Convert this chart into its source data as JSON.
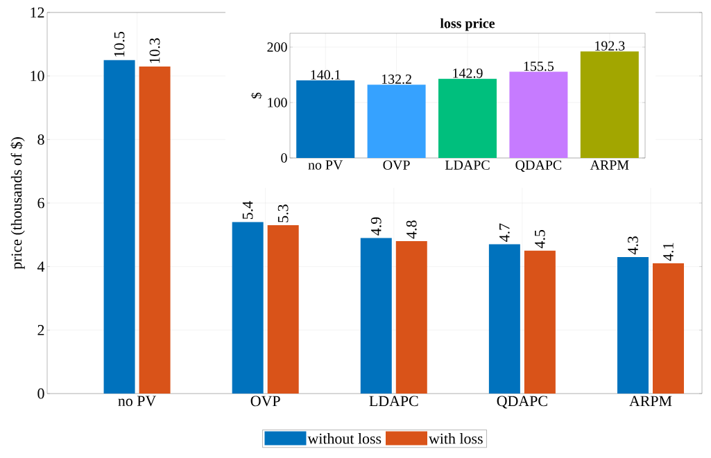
{
  "chart_data": [
    {
      "type": "bar",
      "ylabel": "price (thousands of $)",
      "categories": [
        "no PV",
        "OVP",
        "LDAPC",
        "QDAPC",
        "ARPM"
      ],
      "series": [
        {
          "name": "without loss",
          "color": "#0072bd",
          "values": [
            10.5,
            5.4,
            4.9,
            4.7,
            4.3
          ]
        },
        {
          "name": "with loss",
          "color": "#d95319",
          "values": [
            10.3,
            5.3,
            4.8,
            4.5,
            4.1
          ]
        }
      ],
      "ylim": [
        0,
        12
      ],
      "yticks": [
        0,
        2,
        4,
        6,
        8,
        10,
        12
      ],
      "data_labels": true,
      "grid": true,
      "legend": "bottom"
    },
    {
      "type": "bar",
      "title": "loss price",
      "ylabel": "$",
      "categories": [
        "no PV",
        "OVP",
        "LDAPC",
        "QDAPC",
        "ARPM"
      ],
      "values": [
        140.1,
        132.2,
        142.9,
        155.5,
        192.3
      ],
      "colors": [
        "#0072bd",
        "#36a2ff",
        "#00bf7d",
        "#c67bff",
        "#a2a600"
      ],
      "ylim": [
        0,
        225
      ],
      "yticks": [
        0,
        100,
        200
      ],
      "data_labels": true,
      "grid": true
    }
  ]
}
